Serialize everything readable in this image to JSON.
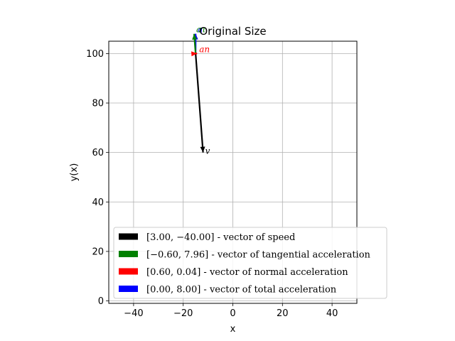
{
  "chart_data": {
    "type": "quiver",
    "title": "Original Size",
    "xlabel": "x",
    "ylabel": "y(x)",
    "xlim": [
      -50,
      50
    ],
    "ylim": [
      -1,
      105
    ],
    "xticks": [
      -40,
      -20,
      0,
      20,
      40
    ],
    "yticks": [
      0,
      20,
      40,
      60,
      80,
      100
    ],
    "xtick_labels": [
      "−40",
      "−20",
      "0",
      "20",
      "40"
    ],
    "ytick_labels": [
      "0",
      "20",
      "40",
      "60",
      "80",
      "100"
    ],
    "grid": true,
    "legend_position": "lower-right",
    "origin": {
      "x": -15,
      "y": 100
    },
    "vectors": [
      {
        "name": "v",
        "label": "v",
        "components": [
          3.0,
          -40.0
        ],
        "color": "#000000",
        "legend": "[3.00, −40.00] - vector of speed"
      },
      {
        "name": "a_tau",
        "label": "aτ",
        "components": [
          -0.6,
          7.96
        ],
        "color": "#008000",
        "legend": "[−0.60, 7.96] - vector of tangential acceleration"
      },
      {
        "name": "a_n",
        "label": "an",
        "components": [
          0.6,
          0.04
        ],
        "color": "#ff0000",
        "legend": "[0.60, 0.04] - vector of normal acceleration"
      },
      {
        "name": "a",
        "label": "a",
        "components": [
          0.0,
          8.0
        ],
        "color": "#0000ff",
        "legend": "[0.00, 8.00] - vector of total acceleration"
      }
    ]
  }
}
